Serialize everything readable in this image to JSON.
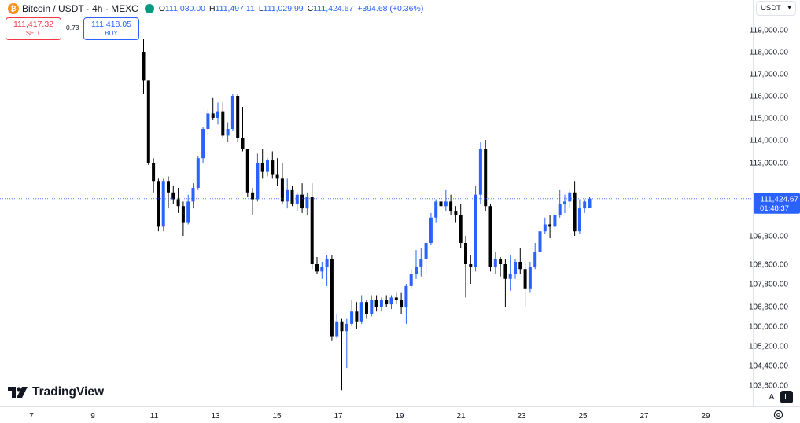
{
  "header": {
    "symbol": "Bitcoin / USDT · 4h · MEXC",
    "open_key": "O",
    "open": "111,030.00",
    "high_key": "H",
    "high": "111,497.11",
    "low_key": "L",
    "low": "111,029.99",
    "close_key": "C",
    "close": "111,424.67",
    "change": "+394.68 (+0.36%)"
  },
  "trade": {
    "sell_price": "111,417.32",
    "sell_label": "SELL",
    "spread": "0.73",
    "buy_price": "111,418.05",
    "buy_label": "BUY"
  },
  "currency_select": "USDT",
  "logo_text": "TradingView",
  "controls": {
    "auto": "A",
    "log": "L"
  },
  "colors": {
    "up": "#2962ff",
    "down": "#000000",
    "last_price_bg": "#2962ff"
  },
  "chart_data": {
    "type": "candlestick",
    "title": "Bitcoin / USDT · 4h · MEXC",
    "y_axis_ticks": [
      "119,000.00",
      "118,000.00",
      "117,000.00",
      "116,000.00",
      "115,000.00",
      "114,000.00",
      "113,000.00",
      "109,800.00",
      "108,600.00",
      "107,800.00",
      "106,800.00",
      "106,000.00",
      "105,200.00",
      "104,400.00",
      "103,600.00"
    ],
    "y_axis_tick_values": [
      119000,
      118000,
      117000,
      116000,
      115000,
      114000,
      113000,
      109800,
      108600,
      107800,
      106800,
      106000,
      105200,
      104400,
      103600
    ],
    "last_price_label": "111,424.67",
    "countdown": "01:48:37",
    "x_axis_ticks": [
      "7",
      "9",
      "11",
      "13",
      "15",
      "17",
      "19",
      "21",
      "23",
      "25",
      "27",
      "29"
    ],
    "candles": [
      {
        "o": 118000,
        "h": 118600,
        "l": 116100,
        "c": 116700
      },
      {
        "o": 116700,
        "h": 116700,
        "l": 112900,
        "c": 113000
      },
      {
        "o": 113000,
        "h": 113200,
        "l": 111700,
        "c": 112200
      },
      {
        "o": 112200,
        "h": 112300,
        "l": 110000,
        "c": 110200
      },
      {
        "o": 110200,
        "h": 112300,
        "l": 110000,
        "c": 112200
      },
      {
        "o": 112200,
        "h": 112400,
        "l": 111000,
        "c": 111700
      },
      {
        "o": 111700,
        "h": 112000,
        "l": 111200,
        "c": 111400
      },
      {
        "o": 111400,
        "h": 111900,
        "l": 110800,
        "c": 111100
      },
      {
        "o": 111100,
        "h": 111300,
        "l": 109800,
        "c": 110400
      },
      {
        "o": 110400,
        "h": 111600,
        "l": 110300,
        "c": 111300
      },
      {
        "o": 111300,
        "h": 112100,
        "l": 111000,
        "c": 111900
      },
      {
        "o": 111900,
        "h": 113300,
        "l": 111800,
        "c": 113200
      },
      {
        "o": 113200,
        "h": 114600,
        "l": 113000,
        "c": 114500
      },
      {
        "o": 114500,
        "h": 115400,
        "l": 114200,
        "c": 115200
      },
      {
        "o": 115200,
        "h": 115900,
        "l": 114900,
        "c": 115000
      },
      {
        "o": 115000,
        "h": 115700,
        "l": 114700,
        "c": 115300
      },
      {
        "o": 115300,
        "h": 115700,
        "l": 114100,
        "c": 114200
      },
      {
        "o": 114200,
        "h": 114800,
        "l": 113900,
        "c": 114500
      },
      {
        "o": 114500,
        "h": 116100,
        "l": 114400,
        "c": 116000
      },
      {
        "o": 116000,
        "h": 116100,
        "l": 113900,
        "c": 114100
      },
      {
        "o": 114100,
        "h": 115500,
        "l": 113500,
        "c": 113600
      },
      {
        "o": 113600,
        "h": 113600,
        "l": 111500,
        "c": 111700
      },
      {
        "o": 111700,
        "h": 111900,
        "l": 110700,
        "c": 111400
      },
      {
        "o": 111400,
        "h": 113400,
        "l": 111300,
        "c": 113000
      },
      {
        "o": 113000,
        "h": 113600,
        "l": 112300,
        "c": 112600
      },
      {
        "o": 112600,
        "h": 113200,
        "l": 112400,
        "c": 113100
      },
      {
        "o": 113100,
        "h": 113500,
        "l": 112300,
        "c": 112500
      },
      {
        "o": 112500,
        "h": 113200,
        "l": 112000,
        "c": 112300
      },
      {
        "o": 112300,
        "h": 113000,
        "l": 111200,
        "c": 111300
      },
      {
        "o": 111300,
        "h": 112300,
        "l": 111000,
        "c": 111800
      },
      {
        "o": 111800,
        "h": 112000,
        "l": 111100,
        "c": 111200
      },
      {
        "o": 111200,
        "h": 111700,
        "l": 110900,
        "c": 111600
      },
      {
        "o": 111600,
        "h": 112100,
        "l": 110800,
        "c": 111000
      },
      {
        "o": 111000,
        "h": 111700,
        "l": 110700,
        "c": 111500
      },
      {
        "o": 111500,
        "h": 112100,
        "l": 108400,
        "c": 108600
      },
      {
        "o": 108600,
        "h": 108900,
        "l": 108200,
        "c": 108300
      },
      {
        "o": 108300,
        "h": 108700,
        "l": 108000,
        "c": 108500
      },
      {
        "o": 108500,
        "h": 109000,
        "l": 107700,
        "c": 108800
      },
      {
        "o": 108800,
        "h": 109000,
        "l": 105400,
        "c": 105600
      },
      {
        "o": 105600,
        "h": 106500,
        "l": 105500,
        "c": 106200
      },
      {
        "o": 106200,
        "h": 106300,
        "l": 103400,
        "c": 105800
      },
      {
        "o": 105800,
        "h": 106300,
        "l": 104300,
        "c": 106100
      },
      {
        "o": 106100,
        "h": 107100,
        "l": 106000,
        "c": 106600
      },
      {
        "o": 106600,
        "h": 107000,
        "l": 105900,
        "c": 106200
      },
      {
        "o": 106200,
        "h": 107300,
        "l": 106100,
        "c": 107000
      },
      {
        "o": 107000,
        "h": 107100,
        "l": 106300,
        "c": 106500
      },
      {
        "o": 106500,
        "h": 107300,
        "l": 106400,
        "c": 107100
      },
      {
        "o": 107100,
        "h": 107300,
        "l": 106600,
        "c": 106800
      },
      {
        "o": 106800,
        "h": 107200,
        "l": 106600,
        "c": 107100
      },
      {
        "o": 107100,
        "h": 107300,
        "l": 106800,
        "c": 106900
      },
      {
        "o": 106900,
        "h": 107300,
        "l": 106700,
        "c": 107200
      },
      {
        "o": 107200,
        "h": 107400,
        "l": 106900,
        "c": 107100
      },
      {
        "o": 107100,
        "h": 107400,
        "l": 106500,
        "c": 106800
      },
      {
        "o": 106800,
        "h": 107800,
        "l": 106100,
        "c": 107700
      },
      {
        "o": 107700,
        "h": 108400,
        "l": 107600,
        "c": 108200
      },
      {
        "o": 108200,
        "h": 109200,
        "l": 108000,
        "c": 108500
      },
      {
        "o": 108500,
        "h": 109300,
        "l": 108100,
        "c": 108800
      },
      {
        "o": 108800,
        "h": 109600,
        "l": 108200,
        "c": 109500
      },
      {
        "o": 109500,
        "h": 110800,
        "l": 109400,
        "c": 110600
      },
      {
        "o": 110600,
        "h": 111400,
        "l": 110400,
        "c": 111300
      },
      {
        "o": 111300,
        "h": 111800,
        "l": 110900,
        "c": 111100
      },
      {
        "o": 111100,
        "h": 111800,
        "l": 110900,
        "c": 111300
      },
      {
        "o": 111300,
        "h": 111600,
        "l": 110700,
        "c": 110900
      },
      {
        "o": 110900,
        "h": 111100,
        "l": 110400,
        "c": 110700
      },
      {
        "o": 110700,
        "h": 111200,
        "l": 109300,
        "c": 109500
      },
      {
        "o": 109500,
        "h": 109800,
        "l": 107200,
        "c": 108600
      },
      {
        "o": 108600,
        "h": 109000,
        "l": 107800,
        "c": 108500
      },
      {
        "o": 108500,
        "h": 112000,
        "l": 108300,
        "c": 111600
      },
      {
        "o": 111600,
        "h": 113900,
        "l": 111200,
        "c": 113600
      },
      {
        "o": 113600,
        "h": 114000,
        "l": 110900,
        "c": 111100
      },
      {
        "o": 111100,
        "h": 111200,
        "l": 108300,
        "c": 108500
      },
      {
        "o": 108500,
        "h": 109100,
        "l": 108200,
        "c": 108800
      },
      {
        "o": 108800,
        "h": 108900,
        "l": 108100,
        "c": 108600
      },
      {
        "o": 108600,
        "h": 108800,
        "l": 106800,
        "c": 108000
      },
      {
        "o": 108000,
        "h": 109000,
        "l": 107500,
        "c": 108200
      },
      {
        "o": 108200,
        "h": 108800,
        "l": 108000,
        "c": 108700
      },
      {
        "o": 108700,
        "h": 109300,
        "l": 108200,
        "c": 108400
      },
      {
        "o": 108400,
        "h": 108600,
        "l": 106800,
        "c": 107600
      },
      {
        "o": 107600,
        "h": 108700,
        "l": 107400,
        "c": 108500
      },
      {
        "o": 108500,
        "h": 109500,
        "l": 108400,
        "c": 109100
      },
      {
        "o": 109100,
        "h": 110300,
        "l": 108900,
        "c": 110000
      },
      {
        "o": 110000,
        "h": 110600,
        "l": 109900,
        "c": 110300
      },
      {
        "o": 110300,
        "h": 110700,
        "l": 109700,
        "c": 110200
      },
      {
        "o": 110200,
        "h": 110800,
        "l": 110000,
        "c": 110700
      },
      {
        "o": 110700,
        "h": 111800,
        "l": 110600,
        "c": 111200
      },
      {
        "o": 111200,
        "h": 111600,
        "l": 110800,
        "c": 111300
      },
      {
        "o": 111300,
        "h": 111800,
        "l": 111000,
        "c": 111700
      },
      {
        "o": 111700,
        "h": 112200,
        "l": 109800,
        "c": 110000
      },
      {
        "o": 110000,
        "h": 111400,
        "l": 109900,
        "c": 111000
      },
      {
        "o": 111000,
        "h": 111400,
        "l": 110800,
        "c": 111300
      },
      {
        "o": 111030,
        "h": 111497.11,
        "l": 111029.99,
        "c": 111424.67
      }
    ]
  }
}
